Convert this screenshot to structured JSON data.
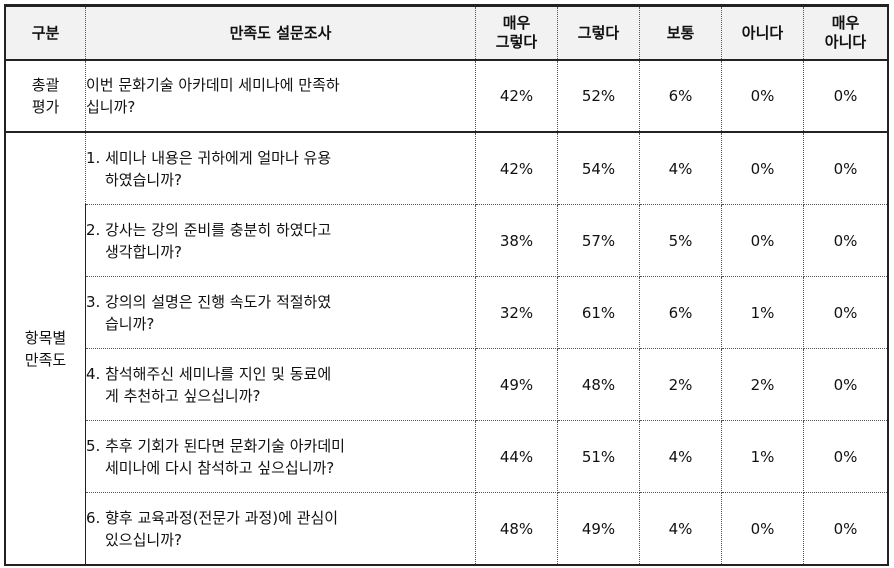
{
  "headers": {
    "category": "구분",
    "question": "만족도 설문조사",
    "very_yes": [
      "매우",
      "그렇다"
    ],
    "yes": "그렇다",
    "neutral": "보통",
    "no": "아니다",
    "very_no": [
      "매우",
      "아니다"
    ]
  },
  "overall": {
    "category": [
      "총괄",
      "평가"
    ],
    "question": [
      "이번 문화기술 아카데미 세미나에 만족하",
      "십니까?"
    ],
    "values": [
      "42%",
      "52%",
      "6%",
      "0%",
      "0%"
    ]
  },
  "items_category": [
    "항목별",
    "만족도"
  ],
  "items": [
    {
      "question": [
        "1. 세미나 내용은 귀하에게 얼마나 유용",
        "하였습니까?"
      ],
      "values": [
        "42%",
        "54%",
        "4%",
        "0%",
        "0%"
      ]
    },
    {
      "question": [
        "2. 강사는 강의 준비를 충분히 하였다고",
        "생각합니까?"
      ],
      "values": [
        "38%",
        "57%",
        "5%",
        "0%",
        "0%"
      ]
    },
    {
      "question": [
        "3. 강의의 설명은 진행 속도가 적절하였",
        "습니까?"
      ],
      "values": [
        "32%",
        "61%",
        "6%",
        "1%",
        "0%"
      ]
    },
    {
      "question": [
        "4. 참석해주신 세미나를 지인 및 동료에",
        "게 추천하고 싶으십니까?"
      ],
      "values": [
        "49%",
        "48%",
        "2%",
        "2%",
        "0%"
      ]
    },
    {
      "question": [
        "5. 추후 기회가 된다면 문화기술 아카데미",
        "세미나에 다시 참석하고 싶으십니까?"
      ],
      "values": [
        "44%",
        "51%",
        "4%",
        "1%",
        "0%"
      ]
    },
    {
      "question": [
        "6. 향후 교육과정(전문가 과정)에 관심이",
        "있으십니까?"
      ],
      "values": [
        "48%",
        "49%",
        "4%",
        "0%",
        "0%"
      ]
    }
  ]
}
